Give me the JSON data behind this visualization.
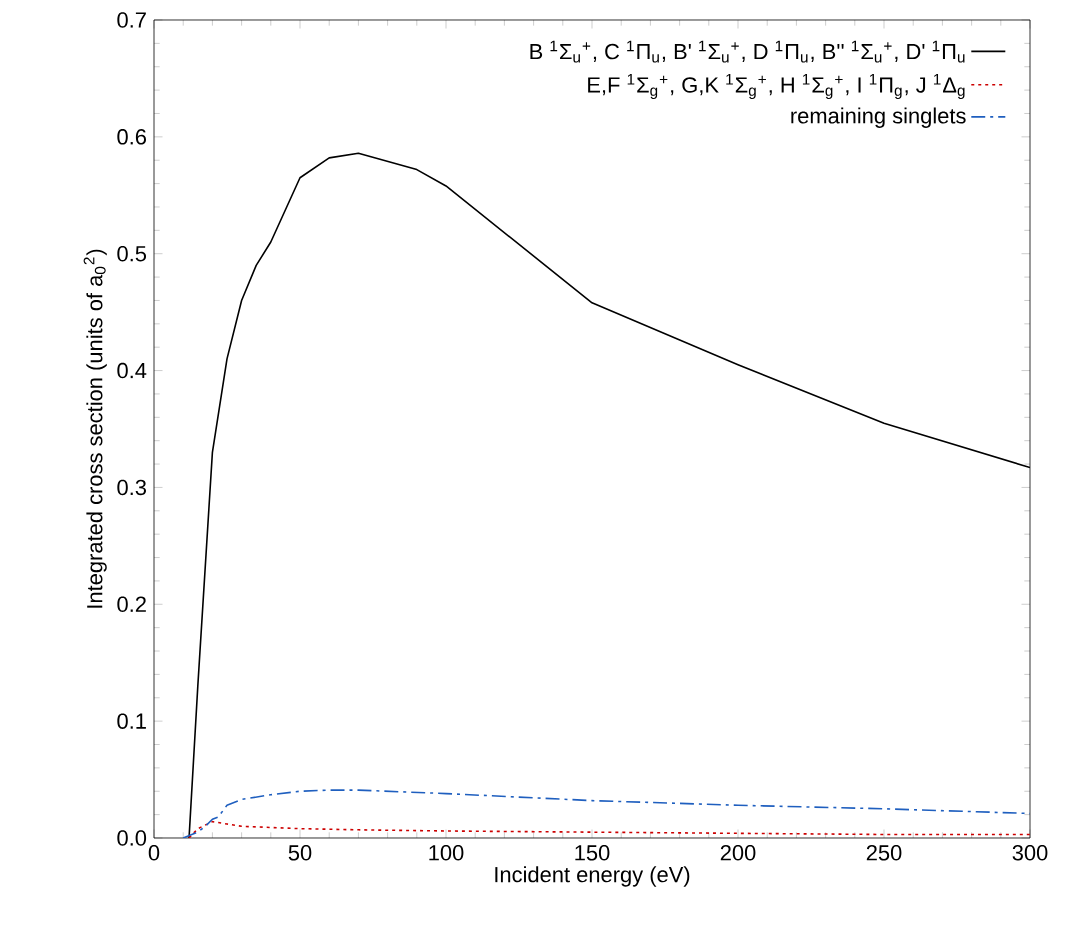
{
  "chart_data": {
    "type": "line",
    "xlabel": "Incident energy (eV)",
    "ylabel": "Integrated cross section (units of a$_{0}$$^{2}$)",
    "xlim": [
      0,
      300
    ],
    "ylim": [
      0,
      0.7
    ],
    "xticks": [
      0,
      50,
      100,
      150,
      200,
      250,
      300
    ],
    "yticks": [
      {
        "value": 0,
        "label": "0.0"
      },
      0.1,
      0.2,
      0.3,
      0.4,
      0.5,
      0.6,
      0.7
    ],
    "grid": false,
    "legend": "top right",
    "marker": "none",
    "series": [
      {
        "name": "B $^{1}$Σ$_{u}$$^{+}$, C $^{1}$Π$_{u}$, B' $^{1}$Σ$_{u}$$^{+}$, D $^{1}$Π$_{u}$, B'' $^{1}$Σ$_{u}$$^{+}$, D' $^{1}$Π$_{u}$",
        "color": "#000000",
        "line_style": "solid",
        "x": [
          12,
          15,
          20,
          25,
          30,
          35,
          40,
          50,
          60,
          70,
          90,
          100,
          150,
          200,
          250,
          300
        ],
        "values": [
          0,
          0.13,
          0.33,
          0.41,
          0.46,
          0.49,
          0.51,
          0.565,
          0.582,
          0.586,
          0.572,
          0.558,
          0.458,
          0.405,
          0.355,
          0.317
        ]
      },
      {
        "name": "E,F $^{1}$Σ$_{g}$$^{+}$, G,K $^{1}$Σ$_{g}$$^{+}$, H $^{1}$Σ$_{g}$$^{+}$, I $^{1}$Π$_{g}$, J $^{1}$Δ$_{g}$",
        "color": "#cc0000",
        "line_style": "dotted",
        "x": [
          12,
          15,
          20,
          25,
          30,
          40,
          50,
          70,
          100,
          150,
          200,
          250,
          300
        ],
        "values": [
          0,
          0.008,
          0.014,
          0.012,
          0.01,
          0.009,
          0.008,
          0.007,
          0.006,
          0.005,
          0.004,
          0.003,
          0.003
        ]
      },
      {
        "name": "remaining singlets",
        "color": "#1f5fbf",
        "line_style": "dashed",
        "x": [
          10,
          15,
          18,
          20,
          22,
          25,
          30,
          40,
          50,
          60,
          70,
          100,
          150,
          200,
          250,
          300
        ],
        "values": [
          0,
          0.005,
          0.011,
          0.016,
          0.018,
          0.028,
          0.033,
          0.037,
          0.04,
          0.041,
          0.041,
          0.038,
          0.032,
          0.028,
          0.025,
          0.021
        ]
      }
    ]
  }
}
